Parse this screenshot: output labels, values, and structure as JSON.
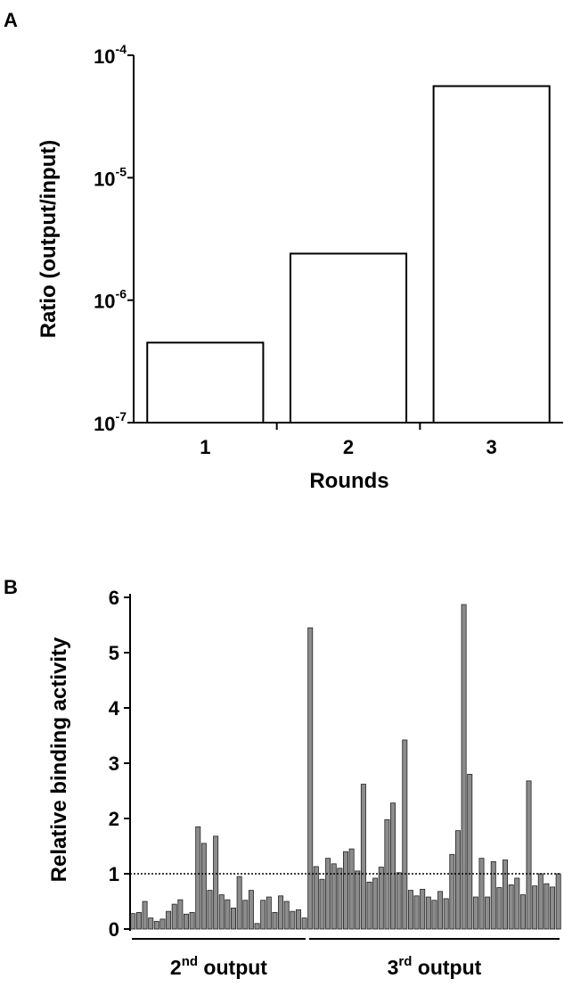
{
  "chart_data": [
    {
      "panel_label": "A",
      "type": "bar",
      "categories": [
        "1",
        "2",
        "3"
      ],
      "values": [
        4.5e-07,
        2.4e-06,
        5.6e-05
      ],
      "xlabel": "Rounds",
      "ylabel": "Ratio (output/input)",
      "yscale": "log",
      "ylim": [
        1e-07,
        0.0001
      ],
      "yticks": [
        {
          "value": 1e-07,
          "base": "10",
          "exp": "-7"
        },
        {
          "value": 1e-06,
          "base": "10",
          "exp": "-6"
        },
        {
          "value": 1e-05,
          "base": "10",
          "exp": "-5"
        },
        {
          "value": 0.0001,
          "base": "10",
          "exp": "-4"
        }
      ],
      "bar_fill": "#ffffff",
      "grid": false
    },
    {
      "panel_label": "B",
      "type": "bar",
      "ylabel": "Relative binding activity",
      "ylim": [
        0,
        6
      ],
      "yticks": [
        0,
        1,
        2,
        3,
        4,
        5,
        6
      ],
      "reference_line": 1,
      "bar_color": "#8c8c8c",
      "grid": false,
      "groups": [
        {
          "label_prefix": "2",
          "label_sup": "nd",
          "label_suffix": " output",
          "values": [
            0.28,
            0.3,
            0.5,
            0.2,
            0.14,
            0.18,
            0.32,
            0.45,
            0.53,
            0.27,
            0.3,
            1.85,
            1.55,
            0.7,
            1.68,
            0.62,
            0.53,
            0.38,
            0.95,
            0.52,
            0.7,
            0.1,
            0.52,
            0.58,
            0.3,
            0.6,
            0.5,
            0.32,
            0.35,
            0.2
          ]
        },
        {
          "label_prefix": "3",
          "label_sup": "rd",
          "label_suffix": " output",
          "values": [
            5.45,
            1.13,
            0.9,
            1.28,
            1.18,
            1.1,
            1.4,
            1.45,
            1.05,
            2.62,
            0.85,
            0.92,
            1.12,
            1.98,
            2.28,
            1.02,
            3.42,
            0.7,
            0.6,
            0.72,
            0.58,
            0.52,
            0.68,
            0.55,
            1.35,
            1.78,
            5.87,
            2.8,
            0.58,
            1.28,
            0.58,
            1.22,
            0.75,
            1.25,
            0.8,
            0.92,
            0.62,
            2.68,
            0.78,
            1.0,
            0.82,
            0.76,
            1.0
          ]
        }
      ]
    }
  ]
}
